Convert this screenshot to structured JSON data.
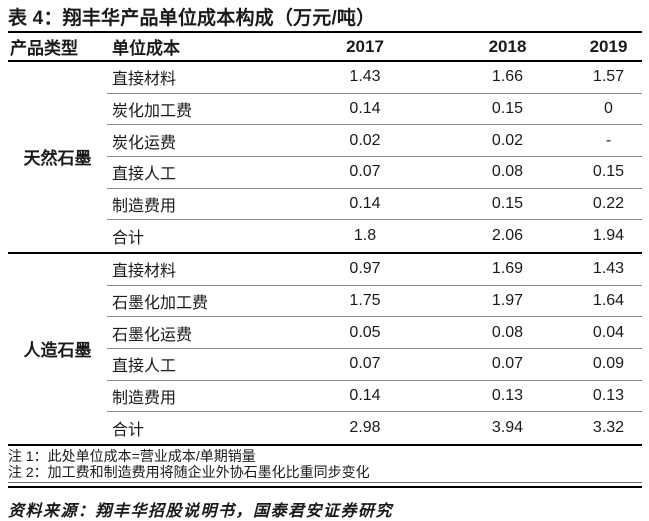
{
  "title": "表 4：翔丰华产品单位成本构成（万元/吨）",
  "table": {
    "columns": [
      "产品类型",
      "单位成本",
      "2017",
      "2018",
      "2019"
    ],
    "sections": [
      {
        "product_type": "天然石墨",
        "rows": [
          {
            "item": "直接材料",
            "values": [
              "1.43",
              "1.66",
              "1.57"
            ]
          },
          {
            "item": "炭化加工费",
            "values": [
              "0.14",
              "0.15",
              "0"
            ]
          },
          {
            "item": "炭化运费",
            "values": [
              "0.02",
              "0.02",
              "-"
            ]
          },
          {
            "item": "直接人工",
            "values": [
              "0.07",
              "0.08",
              "0.15"
            ]
          },
          {
            "item": "制造费用",
            "values": [
              "0.14",
              "0.15",
              "0.22"
            ]
          },
          {
            "item": "合计",
            "values": [
              "1.8",
              "2.06",
              "1.94"
            ]
          }
        ]
      },
      {
        "product_type": "人造石墨",
        "rows": [
          {
            "item": "直接材料",
            "values": [
              "0.97",
              "1.69",
              "1.43"
            ]
          },
          {
            "item": "石墨化加工费",
            "values": [
              "1.75",
              "1.97",
              "1.64"
            ]
          },
          {
            "item": "石墨化运费",
            "values": [
              "0.05",
              "0.08",
              "0.04"
            ]
          },
          {
            "item": "直接人工",
            "values": [
              "0.07",
              "0.07",
              "0.09"
            ]
          },
          {
            "item": "制造费用",
            "values": [
              "0.14",
              "0.13",
              "0.13"
            ]
          },
          {
            "item": "合计",
            "values": [
              "2.98",
              "3.94",
              "3.32"
            ]
          }
        ]
      }
    ]
  },
  "notes": [
    "注 1：此处单位成本=营业成本/单期销量",
    "注 2：加工费和制造费用将随企业外协石墨化比重同步变化"
  ],
  "source": "资料来源：翔丰华招股说明书，国泰君安证券研究",
  "colors": {
    "background": "#ffffff",
    "text": "#1a1a1a",
    "rule_heavy": "#000000",
    "rule_light": "#8a8a8a"
  }
}
